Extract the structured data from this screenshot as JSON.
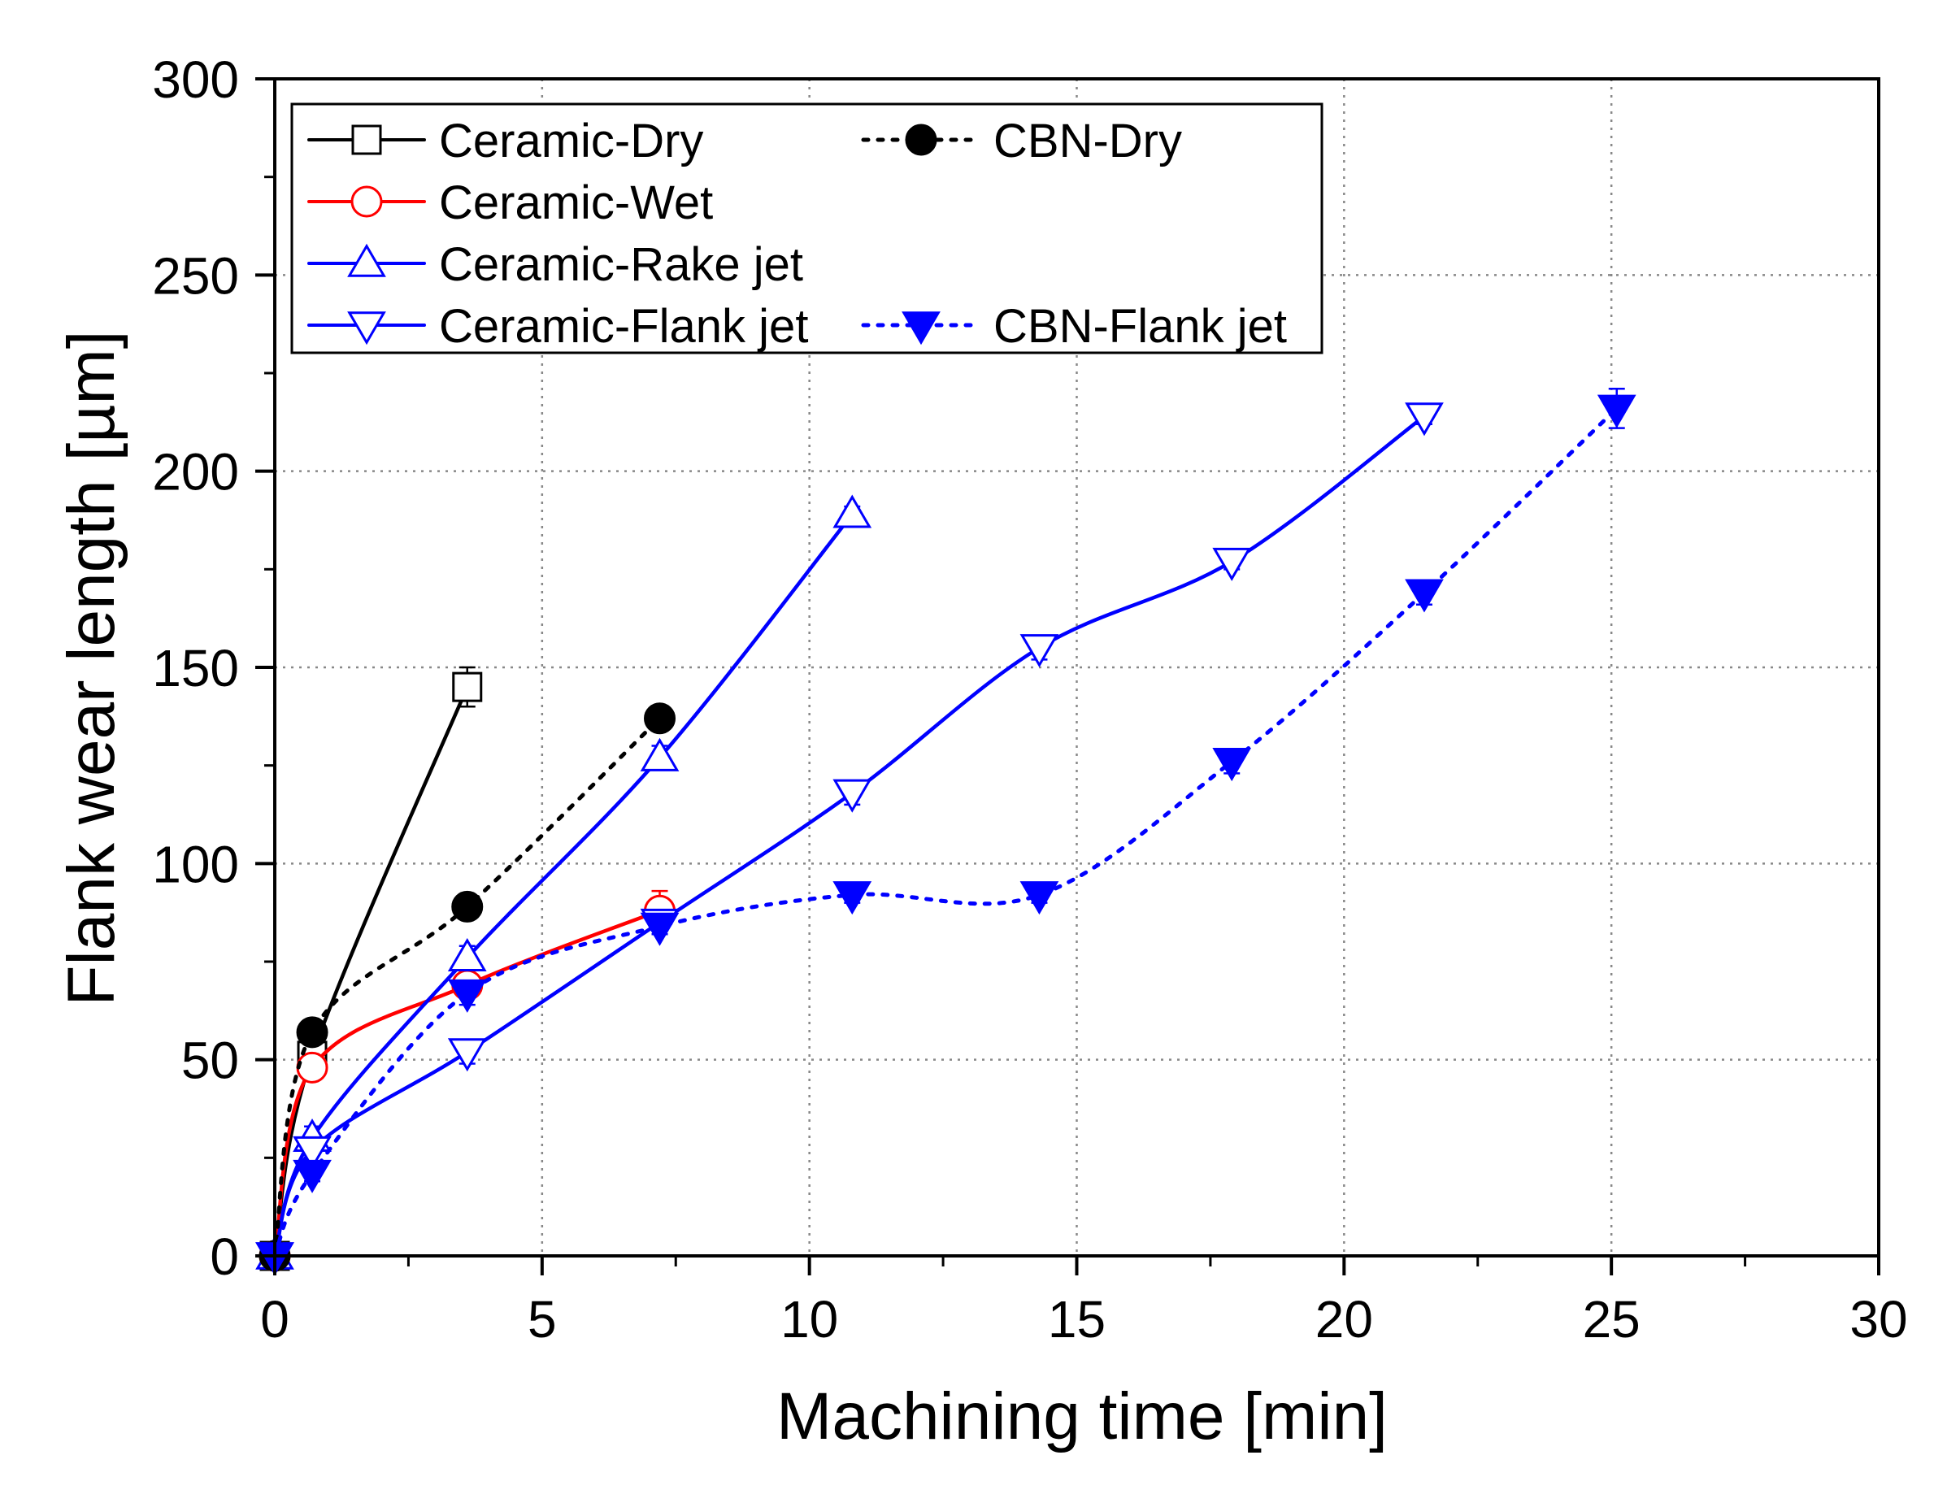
{
  "chart_data": {
    "type": "line",
    "title": "",
    "xlabel": "Machining time [min]",
    "ylabel": "Flank wear length [µm]",
    "xlim": [
      0,
      30
    ],
    "ylim": [
      0,
      300
    ],
    "x_ticks": [
      0,
      5,
      10,
      15,
      20,
      25,
      30
    ],
    "y_ticks": [
      0,
      50,
      100,
      150,
      200,
      250,
      300
    ],
    "grid": true,
    "legend_position": "top-left",
    "series": [
      {
        "name": "Ceramic-Dry",
        "color": "#000000",
        "marker": "open-square",
        "line_style": "solid",
        "x": [
          0,
          0.7,
          3.6
        ],
        "y": [
          0,
          51,
          145
        ],
        "error": [
          0,
          3,
          5
        ]
      },
      {
        "name": "Ceramic-Wet",
        "color": "#ff0000",
        "marker": "open-circle",
        "line_style": "solid",
        "x": [
          0,
          0.7,
          3.6,
          7.2
        ],
        "y": [
          0,
          48,
          69,
          88
        ],
        "error": [
          0,
          3,
          3,
          5
        ]
      },
      {
        "name": "Ceramic-Rake jet",
        "color": "#0000ff",
        "marker": "open-triangle-up",
        "line_style": "solid",
        "x": [
          0,
          0.7,
          3.6,
          7.2,
          10.8
        ],
        "y": [
          0,
          30,
          76,
          127,
          189
        ],
        "error": [
          0,
          3,
          3,
          3,
          2
        ]
      },
      {
        "name": "Ceramic-Flank jet",
        "color": "#0000ff",
        "marker": "open-triangle-down",
        "line_style": "solid",
        "x": [
          0,
          0.7,
          3.6,
          7.2,
          10.8,
          14.3,
          17.9,
          21.5
        ],
        "y": [
          0,
          27,
          52,
          85,
          118,
          155,
          177,
          214
        ],
        "error": [
          0,
          3,
          3,
          2,
          3,
          3,
          2,
          2
        ]
      },
      {
        "name": "CBN-Dry",
        "color": "#000000",
        "marker": "filled-circle",
        "line_style": "dotted",
        "x": [
          0,
          0.7,
          3.6,
          7.2
        ],
        "y": [
          0,
          57,
          89,
          137
        ],
        "error": [
          0,
          0,
          0,
          0
        ]
      },
      {
        "name": "CBN-Flank jet",
        "color": "#0000ff",
        "marker": "filled-triangle-down",
        "line_style": "dotted",
        "x": [
          0,
          0.7,
          3.6,
          7.2,
          10.8,
          14.3,
          17.9,
          21.5,
          25.1
        ],
        "y": [
          0,
          21,
          67,
          84,
          92,
          92,
          126,
          169,
          216
        ],
        "error": [
          0,
          2,
          3,
          2,
          2,
          2,
          3,
          3,
          5
        ]
      }
    ]
  }
}
